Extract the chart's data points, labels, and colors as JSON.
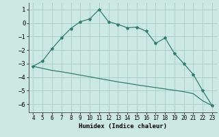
{
  "x": [
    4,
    5,
    6,
    7,
    8,
    9,
    10,
    11,
    12,
    13,
    14,
    15,
    16,
    17,
    18,
    19,
    20,
    21,
    22,
    23
  ],
  "y_curve": [
    -3.2,
    -2.8,
    -1.9,
    -1.1,
    -0.4,
    0.1,
    0.3,
    1.0,
    0.1,
    -0.1,
    -0.35,
    -0.3,
    -0.6,
    -1.5,
    -1.1,
    -2.25,
    -3.0,
    -3.8,
    -5.0,
    -6.1
  ],
  "y_line": [
    -3.2,
    -3.35,
    -3.5,
    -3.6,
    -3.72,
    -3.85,
    -3.97,
    -4.1,
    -4.22,
    -4.35,
    -4.45,
    -4.57,
    -4.67,
    -4.77,
    -4.87,
    -4.97,
    -5.07,
    -5.22,
    -5.75,
    -6.1
  ],
  "color": "#2e7d6e",
  "bg_color": "#cce8e3",
  "grid_color": "#aacfca",
  "xlabel": "Humidex (Indice chaleur)",
  "xlim": [
    3.5,
    23.5
  ],
  "ylim": [
    -6.6,
    1.5
  ],
  "yticks": [
    1,
    0,
    -1,
    -2,
    -3,
    -4,
    -5,
    -6
  ],
  "xticks": [
    4,
    5,
    6,
    7,
    8,
    9,
    10,
    11,
    12,
    13,
    14,
    15,
    16,
    17,
    18,
    19,
    20,
    21,
    22,
    23
  ]
}
